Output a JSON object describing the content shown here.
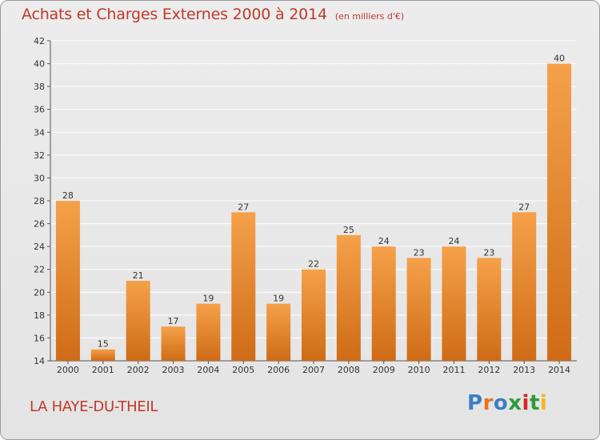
{
  "header": {
    "title": "Achats et Charges Externes 2000 à 2014",
    "subtitle": "(en milliers d'€)"
  },
  "footer": {
    "commune": "LA HAYE-DU-THEIL",
    "logo_text": "Proxiti",
    "logo_colors": [
      "#3a7fc4",
      "#e8731c",
      "#3a7fc4",
      "#2e9b3a",
      "#d9232a",
      "#2e9b3a",
      "#f1b81b"
    ]
  },
  "colors": {
    "title": "#c0392b",
    "bar_light": "#f5a14a",
    "bar_dark": "#cf6b16",
    "axis": "#555555",
    "grid": "#ffffff"
  },
  "chart_data": {
    "type": "bar",
    "title": "Achats et Charges Externes 2000 à 2014",
    "xlabel": "",
    "ylabel": "",
    "categories": [
      "2000",
      "2001",
      "2002",
      "2003",
      "2004",
      "2005",
      "2006",
      "2007",
      "2008",
      "2009",
      "2010",
      "2011",
      "2012",
      "2013",
      "2014"
    ],
    "values": [
      28,
      15,
      21,
      17,
      19,
      27,
      19,
      22,
      25,
      24,
      23,
      24,
      23,
      27,
      40
    ],
    "data_labels": [
      "28",
      "15",
      "21",
      "17",
      "19",
      "27",
      "19",
      "22",
      "25",
      "24",
      "23",
      "24",
      "23",
      "27",
      "40"
    ],
    "ylim": [
      14,
      42
    ],
    "yticks": [
      "14",
      "16",
      "18",
      "20",
      "22",
      "24",
      "26",
      "28",
      "30",
      "32",
      "34",
      "36",
      "38",
      "40",
      "42"
    ],
    "grid": true,
    "legend": "none"
  }
}
